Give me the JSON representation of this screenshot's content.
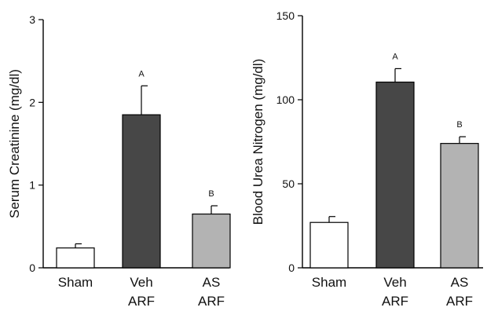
{
  "chart_data": [
    {
      "type": "bar",
      "ylabel": "Serum Creatinine (mg/dl)",
      "ylim": [
        0,
        3
      ],
      "yticks": [
        "0",
        "1",
        "2",
        "3"
      ],
      "categories": [
        "Sham",
        "Veh ARF",
        "AS ARF"
      ],
      "category_lines": [
        [
          "Sham"
        ],
        [
          "Veh",
          "ARF"
        ],
        [
          "AS",
          "ARF"
        ]
      ],
      "values": [
        0.24,
        1.85,
        0.65
      ],
      "errors": [
        0.05,
        0.35,
        0.1
      ],
      "annotations": [
        "",
        "A",
        "B"
      ],
      "colors": [
        "#ffffff",
        "#474747",
        "#b3b3b3"
      ],
      "grid": false
    },
    {
      "type": "bar",
      "ylabel": "Blood Urea Nitrogen (mg/dl)",
      "ylim": [
        0,
        150
      ],
      "yticks": [
        "0",
        "50",
        "100",
        "150"
      ],
      "categories": [
        "Sham",
        "Veh ARF",
        "AS ARF"
      ],
      "category_lines": [
        [
          "Sham"
        ],
        [
          "Veh",
          "ARF"
        ],
        [
          "AS",
          "ARF"
        ]
      ],
      "values": [
        27,
        110.5,
        74
      ],
      "errors": [
        3.5,
        8,
        4
      ],
      "annotations": [
        "",
        "A",
        "B"
      ],
      "colors": [
        "#ffffff",
        "#474747",
        "#b3b3b3"
      ],
      "grid": false
    }
  ]
}
